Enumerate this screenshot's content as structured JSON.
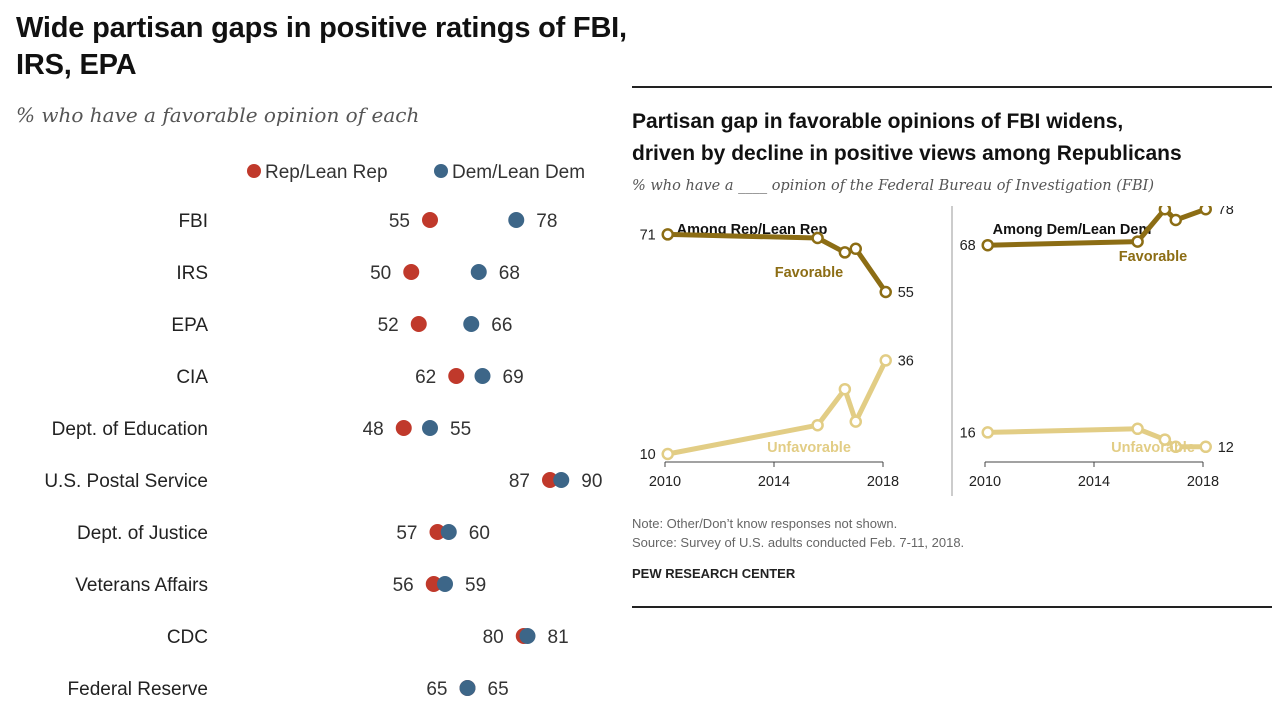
{
  "left_chart": {
    "title": "Wide partisan gaps in positive ratings of FBI, IRS, EPA",
    "subtitle": "% who have a favorable opinion of each"
  },
  "right_chart": {
    "title_line1": "Partisan gap in favorable opinions of FBI widens,",
    "title_line2": "driven by decline in positive views among Republicans",
    "subtitle": "% who have a ____ opinion of the Federal Bureau of Investigation (FBI)",
    "note": "Note: Other/Don’t know responses not shown.",
    "source": "Source: Survey of U.S. adults conducted Feb. 7-11, 2018.",
    "brand": "PEW RESEARCH CENTER"
  },
  "colors": {
    "rep": "#c0392b",
    "dem": "#3d6688",
    "favorable": "#8c6d14",
    "unfavorable": "#e2cd85"
  },
  "chart_data": [
    {
      "type": "scatter",
      "subtype": "dot-plot",
      "title": "Wide partisan gaps in positive ratings of FBI, IRS, EPA",
      "subtitle": "% who have a favorable opinion of each",
      "categories": [
        "FBI",
        "IRS",
        "EPA",
        "CIA",
        "Dept. of Education",
        "U.S. Postal Service",
        "Dept. of Justice",
        "Veterans Affairs",
        "CDC",
        "Federal Reserve"
      ],
      "series": [
        {
          "name": "Rep/Lean Rep",
          "values": [
            55,
            50,
            52,
            62,
            48,
            87,
            57,
            56,
            80,
            65
          ]
        },
        {
          "name": "Dem/Lean Dem",
          "values": [
            78,
            68,
            66,
            69,
            55,
            90,
            60,
            59,
            81,
            65
          ]
        }
      ],
      "xlim": [
        20,
        100
      ],
      "legend": "top",
      "grid": false
    },
    {
      "type": "line",
      "panel_title": "Among Rep/Lean Rep",
      "x_ticks": [
        "2010",
        "2014",
        "2018"
      ],
      "xlim": [
        2010,
        2018
      ],
      "ylim": [
        0,
        90
      ],
      "series": [
        {
          "name": "Favorable",
          "x": [
            2010.1,
            2015.6,
            2016.6,
            2017.0,
            2018.1
          ],
          "values": [
            71,
            70,
            66,
            67,
            55
          ],
          "start_label": "71",
          "end_label": "55"
        },
        {
          "name": "Unfavorable",
          "x": [
            2010.1,
            2015.6,
            2016.6,
            2017.0,
            2018.1
          ],
          "values": [
            10,
            18,
            28,
            19,
            36
          ],
          "start_label": "10",
          "end_label": "36"
        }
      ]
    },
    {
      "type": "line",
      "panel_title": "Among Dem/Lean Dem",
      "x_ticks": [
        "2010",
        "2014",
        "2018"
      ],
      "xlim": [
        2010,
        2018
      ],
      "ylim": [
        0,
        90
      ],
      "series": [
        {
          "name": "Favorable",
          "x": [
            2010.1,
            2015.6,
            2016.6,
            2017.0,
            2018.1
          ],
          "values": [
            68,
            69,
            78,
            75,
            78
          ],
          "start_label": "68",
          "end_label": "78"
        },
        {
          "name": "Unfavorable",
          "x": [
            2010.1,
            2015.6,
            2016.6,
            2017.0,
            2018.1
          ],
          "values": [
            16,
            17,
            14,
            12,
            12
          ],
          "start_label": "16",
          "end_label": "12"
        }
      ]
    }
  ]
}
